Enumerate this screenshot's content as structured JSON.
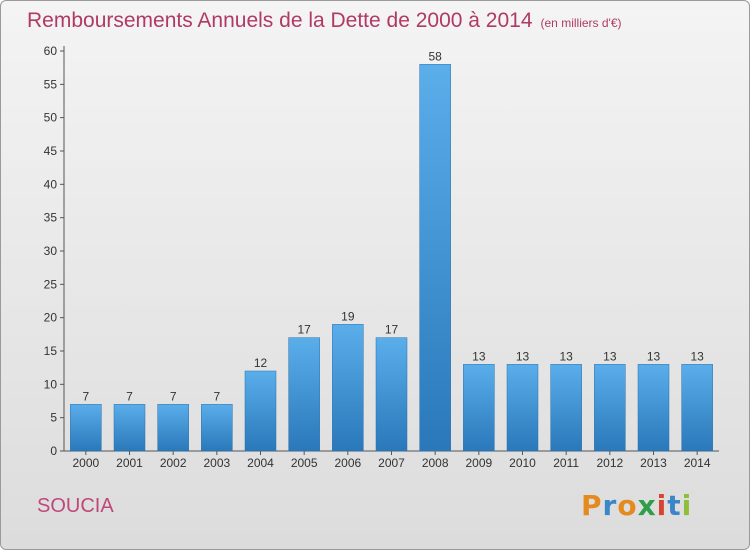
{
  "header": {
    "title": "Remboursements Annuels de la Dette de 2000 à 2014",
    "unit": "(en milliers d'€)"
  },
  "footer": {
    "place": "SOUCIA",
    "logo_text": "Proxiti",
    "logo_colors": [
      "#e58a1f",
      "#3a86c8",
      "#e58a1f",
      "#2f9e4a",
      "#d6452f",
      "#3a86c8",
      "#8dbf3a"
    ]
  },
  "chart_data": {
    "type": "bar",
    "title": "Remboursements Annuels de la Dette de 2000 à 2014",
    "subtitle": "(en milliers d'€)",
    "categories": [
      "2000",
      "2001",
      "2002",
      "2003",
      "2004",
      "2005",
      "2006",
      "2007",
      "2008",
      "2009",
      "2010",
      "2011",
      "2012",
      "2013",
      "2014"
    ],
    "values": [
      7,
      7,
      7,
      7,
      12,
      17,
      19,
      17,
      58,
      13,
      13,
      13,
      13,
      13,
      13
    ],
    "ylim": [
      0,
      60
    ],
    "yticks": [
      0,
      5,
      10,
      15,
      20,
      25,
      30,
      35,
      40,
      45,
      50,
      55,
      60
    ],
    "grid": false,
    "bar_color": "#3f95d8",
    "bar_color_dark": "#2a78ba"
  }
}
